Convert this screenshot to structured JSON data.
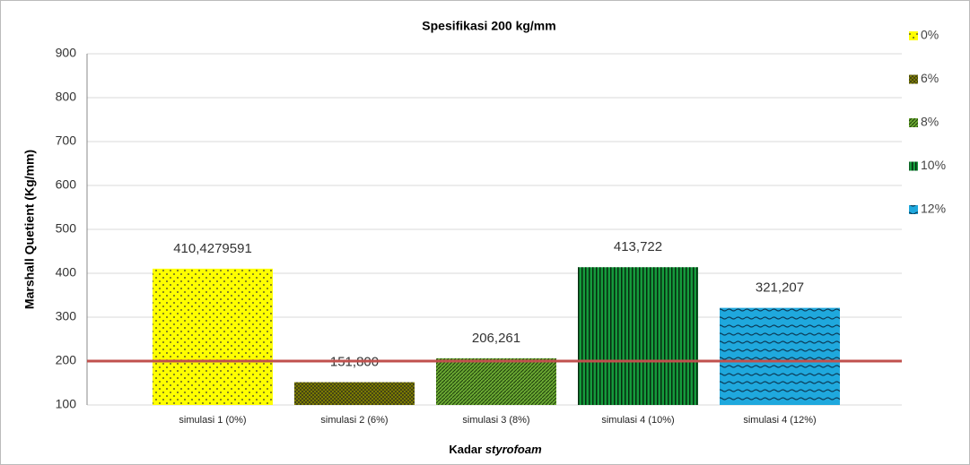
{
  "chart_data": {
    "type": "bar",
    "title": "Spesifikasi 200 kg/mm",
    "y_label": "Marshall Quetient (Kg/mm)",
    "x_label": [
      "Kadar",
      "styrofoam"
    ],
    "categories": [
      "simulasi 1 (0%)",
      "simulasi 2 (6%)",
      "simulasi 3 (8%)",
      "simulasi 4 (10%)",
      "simulasi 4 (12%)"
    ],
    "series": [
      {
        "name": "0%",
        "color": "#ffff00",
        "values": [
          410.4279591,
          null,
          null,
          null,
          null
        ],
        "value_labels": [
          "410,4279591",
          null,
          null,
          null,
          null
        ]
      },
      {
        "name": "6%",
        "color": "#7a7a00",
        "values": [
          null,
          151.8,
          null,
          null,
          null
        ],
        "value_labels": [
          null,
          "151,800",
          null,
          null,
          null
        ]
      },
      {
        "name": "8%",
        "color": "#6aa832",
        "values": [
          null,
          null,
          206.261,
          null,
          null
        ],
        "value_labels": [
          null,
          null,
          "206,261",
          null,
          null
        ]
      },
      {
        "name": "10%",
        "color": "#159a3c",
        "values": [
          null,
          null,
          null,
          413.722,
          null
        ],
        "value_labels": [
          null,
          null,
          null,
          "413,722",
          null
        ]
      },
      {
        "name": "12%",
        "color": "#1fa8dd",
        "values": [
          null,
          null,
          null,
          null,
          321.207
        ],
        "value_labels": [
          null,
          null,
          null,
          null,
          "321,207"
        ]
      }
    ],
    "ylim": [
      100,
      900
    ],
    "yticks": [
      100,
      200,
      300,
      400,
      500,
      600,
      700,
      800,
      900
    ],
    "grid": true,
    "reference_line": {
      "value": 200,
      "color": "#c0504d"
    },
    "legend": "right"
  }
}
